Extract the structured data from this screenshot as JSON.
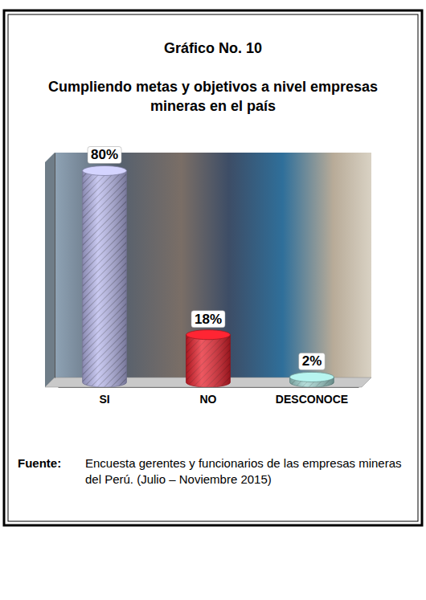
{
  "chart_data": {
    "type": "bar",
    "title": "Gráfico No. 10",
    "subtitle": "Cumpliendo metas y objetivos a nivel empresas mineras en el país",
    "categories": [
      "SI",
      "NO",
      "DESCONOCE"
    ],
    "values": [
      80,
      18,
      2
    ],
    "value_labels": [
      "80%",
      "18%",
      "2%"
    ],
    "colors": [
      "#b8b8ec",
      "#e8202c",
      "#9fd4d0"
    ],
    "ylim": [
      0,
      85
    ],
    "data_labels": true,
    "tick_labels": "x",
    "grid": false,
    "source_label": "Fuente:",
    "source": "Encuesta gerentes y funcionarios de las empresas mineras del Perú. (Julio – Noviembre 2015)"
  }
}
